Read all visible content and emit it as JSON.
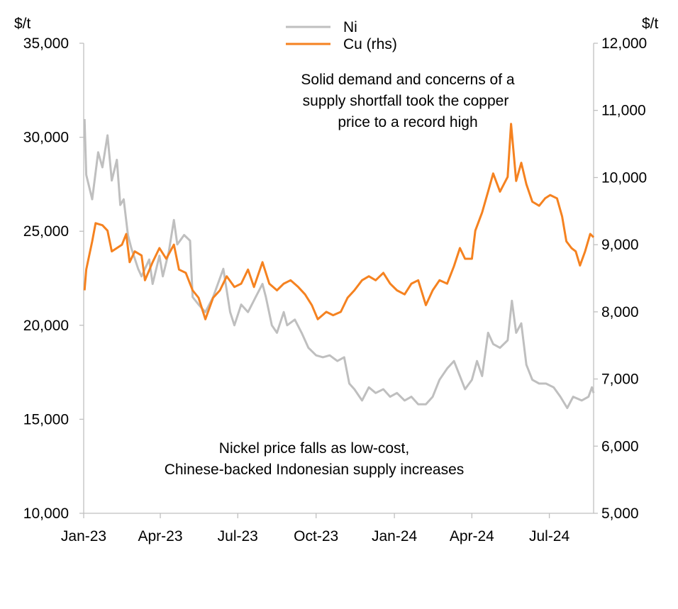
{
  "chart_data": {
    "type": "line",
    "left_unit": "$/t",
    "right_unit": "$/t",
    "left_axis": {
      "ylim": [
        10000,
        35000
      ],
      "ticks": [
        "10,000",
        "15,000",
        "20,000",
        "25,000",
        "30,000",
        "35,000"
      ]
    },
    "right_axis": {
      "ylim": [
        5000,
        12000
      ],
      "ticks": [
        "5,000",
        "6,000",
        "7,000",
        "8,000",
        "9,000",
        "10,000",
        "11,000",
        "12,000"
      ]
    },
    "x_axis": {
      "range": [
        "2023-01-01",
        "2024-08-22"
      ],
      "ticks": [
        {
          "date": "2023-01-01",
          "label": "Jan-23"
        },
        {
          "date": "2023-04-01",
          "label": "Apr-23"
        },
        {
          "date": "2023-07-01",
          "label": "Jul-23"
        },
        {
          "date": "2023-10-01",
          "label": "Oct-23"
        },
        {
          "date": "2024-01-01",
          "label": "Jan-24"
        },
        {
          "date": "2024-04-01",
          "label": "Apr-24"
        },
        {
          "date": "2024-07-01",
          "label": "Jul-24"
        }
      ]
    },
    "grid": false,
    "legend_position": "top-center",
    "annotations": {
      "copper": [
        "Solid demand and concerns of a",
        "supply shortfall took the copper",
        "price to a record high"
      ],
      "nickel": [
        "Nickel price falls as low-cost,",
        "Chinese-backed Indonesian supply increases"
      ]
    },
    "series": [
      {
        "name": "Ni",
        "axis": "left",
        "color": "#bfbfbf",
        "points": [
          [
            "2023-01-02",
            30970
          ],
          [
            "2023-01-04",
            28000
          ],
          [
            "2023-01-11",
            26700
          ],
          [
            "2023-01-18",
            29200
          ],
          [
            "2023-01-23",
            28400
          ],
          [
            "2023-01-29",
            30100
          ],
          [
            "2023-02-03",
            27700
          ],
          [
            "2023-02-09",
            28800
          ],
          [
            "2023-02-13",
            26400
          ],
          [
            "2023-02-17",
            26700
          ],
          [
            "2023-02-22",
            24800
          ],
          [
            "2023-02-26",
            24100
          ],
          [
            "2023-03-06",
            23000
          ],
          [
            "2023-03-10",
            22600
          ],
          [
            "2023-03-19",
            23500
          ],
          [
            "2023-03-23",
            22200
          ],
          [
            "2023-03-31",
            23700
          ],
          [
            "2023-04-04",
            22600
          ],
          [
            "2023-04-11",
            23900
          ],
          [
            "2023-04-17",
            25600
          ],
          [
            "2023-04-21",
            24300
          ],
          [
            "2023-04-29",
            24800
          ],
          [
            "2023-05-06",
            24500
          ],
          [
            "2023-05-09",
            21500
          ],
          [
            "2023-05-16",
            21100
          ],
          [
            "2023-05-24",
            20700
          ],
          [
            "2023-06-02",
            21500
          ],
          [
            "2023-06-14",
            23000
          ],
          [
            "2023-06-22",
            20700
          ],
          [
            "2023-06-27",
            20000
          ],
          [
            "2023-07-05",
            21100
          ],
          [
            "2023-07-13",
            20700
          ],
          [
            "2023-07-22",
            21500
          ],
          [
            "2023-07-30",
            22200
          ],
          [
            "2023-08-03",
            21500
          ],
          [
            "2023-08-10",
            20000
          ],
          [
            "2023-08-16",
            19600
          ],
          [
            "2023-08-24",
            20700
          ],
          [
            "2023-08-28",
            20000
          ],
          [
            "2023-09-06",
            20300
          ],
          [
            "2023-09-14",
            19600
          ],
          [
            "2023-09-22",
            18800
          ],
          [
            "2023-10-01",
            18400
          ],
          [
            "2023-10-09",
            18300
          ],
          [
            "2023-10-17",
            18400
          ],
          [
            "2023-10-26",
            18100
          ],
          [
            "2023-11-03",
            18300
          ],
          [
            "2023-11-09",
            16900
          ],
          [
            "2023-11-15",
            16600
          ],
          [
            "2023-11-24",
            16000
          ],
          [
            "2023-12-02",
            16700
          ],
          [
            "2023-12-10",
            16400
          ],
          [
            "2023-12-19",
            16600
          ],
          [
            "2023-12-27",
            16200
          ],
          [
            "2024-01-04",
            16400
          ],
          [
            "2024-01-13",
            16000
          ],
          [
            "2024-01-21",
            16200
          ],
          [
            "2024-01-29",
            15800
          ],
          [
            "2024-02-07",
            15800
          ],
          [
            "2024-02-15",
            16200
          ],
          [
            "2024-02-23",
            17100
          ],
          [
            "2024-03-03",
            17700
          ],
          [
            "2024-03-11",
            18100
          ],
          [
            "2024-03-18",
            17300
          ],
          [
            "2024-03-24",
            16600
          ],
          [
            "2024-04-01",
            17100
          ],
          [
            "2024-04-07",
            18100
          ],
          [
            "2024-04-13",
            17300
          ],
          [
            "2024-04-20",
            19600
          ],
          [
            "2024-04-26",
            19000
          ],
          [
            "2024-05-04",
            18800
          ],
          [
            "2024-05-13",
            19200
          ],
          [
            "2024-05-18",
            21300
          ],
          [
            "2024-05-23",
            19600
          ],
          [
            "2024-05-29",
            20100
          ],
          [
            "2024-06-04",
            17900
          ],
          [
            "2024-06-11",
            17100
          ],
          [
            "2024-06-19",
            16900
          ],
          [
            "2024-06-27",
            16900
          ],
          [
            "2024-07-06",
            16700
          ],
          [
            "2024-07-14",
            16200
          ],
          [
            "2024-07-22",
            15600
          ],
          [
            "2024-07-29",
            16200
          ],
          [
            "2024-08-08",
            16000
          ],
          [
            "2024-08-16",
            16200
          ],
          [
            "2024-08-20",
            16700
          ],
          [
            "2024-08-22",
            16400
          ]
        ]
      },
      {
        "name": "Cu (rhs)",
        "axis": "right",
        "color": "#f58220",
        "points": [
          [
            "2023-01-02",
            8320
          ],
          [
            "2023-01-04",
            8630
          ],
          [
            "2023-01-11",
            9050
          ],
          [
            "2023-01-15",
            9320
          ],
          [
            "2023-01-23",
            9290
          ],
          [
            "2023-01-29",
            9210
          ],
          [
            "2023-02-03",
            8900
          ],
          [
            "2023-02-09",
            8950
          ],
          [
            "2023-02-15",
            9000
          ],
          [
            "2023-02-20",
            9160
          ],
          [
            "2023-02-24",
            8740
          ],
          [
            "2023-03-02",
            8900
          ],
          [
            "2023-03-10",
            8840
          ],
          [
            "2023-03-14",
            8470
          ],
          [
            "2023-03-23",
            8740
          ],
          [
            "2023-03-31",
            8950
          ],
          [
            "2023-04-08",
            8790
          ],
          [
            "2023-04-17",
            9000
          ],
          [
            "2023-04-23",
            8630
          ],
          [
            "2023-05-01",
            8580
          ],
          [
            "2023-05-09",
            8320
          ],
          [
            "2023-05-16",
            8210
          ],
          [
            "2023-05-24",
            7890
          ],
          [
            "2023-06-02",
            8210
          ],
          [
            "2023-06-10",
            8320
          ],
          [
            "2023-06-18",
            8530
          ],
          [
            "2023-06-27",
            8370
          ],
          [
            "2023-07-05",
            8420
          ],
          [
            "2023-07-13",
            8630
          ],
          [
            "2023-07-20",
            8370
          ],
          [
            "2023-07-30",
            8740
          ],
          [
            "2023-08-07",
            8420
          ],
          [
            "2023-08-16",
            8320
          ],
          [
            "2023-08-24",
            8420
          ],
          [
            "2023-09-01",
            8470
          ],
          [
            "2023-09-10",
            8370
          ],
          [
            "2023-09-18",
            8260
          ],
          [
            "2023-09-26",
            8100
          ],
          [
            "2023-10-03",
            7890
          ],
          [
            "2023-10-13",
            8000
          ],
          [
            "2023-10-21",
            7950
          ],
          [
            "2023-10-30",
            8000
          ],
          [
            "2023-11-07",
            8210
          ],
          [
            "2023-11-15",
            8320
          ],
          [
            "2023-11-24",
            8470
          ],
          [
            "2023-12-02",
            8530
          ],
          [
            "2023-12-10",
            8470
          ],
          [
            "2023-12-19",
            8580
          ],
          [
            "2023-12-27",
            8420
          ],
          [
            "2024-01-04",
            8320
          ],
          [
            "2024-01-13",
            8260
          ],
          [
            "2024-01-21",
            8420
          ],
          [
            "2024-01-29",
            8470
          ],
          [
            "2024-02-07",
            8100
          ],
          [
            "2024-02-15",
            8320
          ],
          [
            "2024-02-23",
            8470
          ],
          [
            "2024-03-03",
            8420
          ],
          [
            "2024-03-11",
            8680
          ],
          [
            "2024-03-18",
            8950
          ],
          [
            "2024-03-24",
            8790
          ],
          [
            "2024-04-01",
            8790
          ],
          [
            "2024-04-05",
            9210
          ],
          [
            "2024-04-13",
            9480
          ],
          [
            "2024-04-20",
            9790
          ],
          [
            "2024-04-26",
            10060
          ],
          [
            "2024-05-04",
            9790
          ],
          [
            "2024-05-13",
            10010
          ],
          [
            "2024-05-17",
            10800
          ],
          [
            "2024-05-23",
            9950
          ],
          [
            "2024-05-29",
            10220
          ],
          [
            "2024-06-04",
            9900
          ],
          [
            "2024-06-11",
            9640
          ],
          [
            "2024-06-19",
            9580
          ],
          [
            "2024-06-26",
            9690
          ],
          [
            "2024-07-02",
            9740
          ],
          [
            "2024-07-10",
            9690
          ],
          [
            "2024-07-16",
            9420
          ],
          [
            "2024-07-21",
            9050
          ],
          [
            "2024-07-27",
            8950
          ],
          [
            "2024-08-01",
            8900
          ],
          [
            "2024-08-06",
            8690
          ],
          [
            "2024-08-12",
            8900
          ],
          [
            "2024-08-18",
            9160
          ],
          [
            "2024-08-22",
            9110
          ]
        ]
      }
    ]
  }
}
